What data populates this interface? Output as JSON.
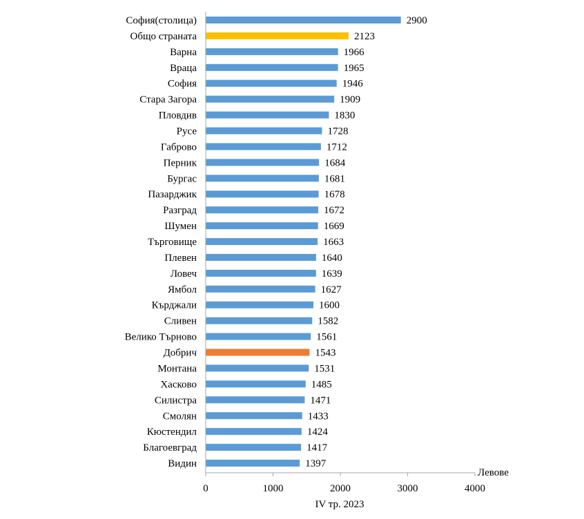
{
  "chart_data": {
    "type": "bar",
    "orientation": "horizontal",
    "categories": [
      "София(столица)",
      "Общо страната",
      "Варна",
      "Враца",
      "София",
      "Стара Загора",
      "Пловдив",
      "Русе",
      "Габрово",
      "Перник",
      "Бургас",
      "Пазарджик",
      "Разград",
      "Шумен",
      "Търговище",
      "Плевен",
      "Ловеч",
      "Ямбол",
      "Кърджали",
      "Сливен",
      "Велико Търново",
      "Добрич",
      "Монтана",
      "Хасково",
      "Силистра",
      "Смолян",
      "Кюстендил",
      "Благоевград",
      "Видин"
    ],
    "values": [
      2900,
      2123,
      1966,
      1965,
      1946,
      1909,
      1830,
      1728,
      1712,
      1684,
      1681,
      1678,
      1672,
      1669,
      1663,
      1640,
      1639,
      1627,
      1600,
      1582,
      1561,
      1543,
      1531,
      1485,
      1471,
      1433,
      1424,
      1417,
      1397
    ],
    "data_labels": [
      "2900",
      "2123",
      "1966",
      "1965",
      "1946",
      "1909",
      "1830",
      "1728",
      "1712",
      "1684",
      "1681",
      "1678",
      "1672",
      "1669",
      "1663",
      "1640",
      "1639",
      "1627",
      "1600",
      "1582",
      "1561",
      "1543",
      "1531",
      "1485",
      "1471",
      "1433",
      "1424",
      "1417",
      "1397"
    ],
    "x_ticks": [
      0,
      1000,
      2000,
      3000,
      4000
    ],
    "x_tick_labels": [
      "0",
      "1000",
      "2000",
      "3000",
      "4000"
    ],
    "xlim": [
      0,
      4000
    ],
    "unit_label": "Левове",
    "xlabel": "IV тр. 2023",
    "grid": false,
    "legend": "none",
    "colors": {
      "default": "#5B9BD5",
      "highlight_total": "#FFC000",
      "highlight_dobrich": "#ED7D31",
      "axis": "#A6A6A6"
    },
    "bar_colors": [
      "default",
      "highlight_total",
      "default",
      "default",
      "default",
      "default",
      "default",
      "default",
      "default",
      "default",
      "default",
      "default",
      "default",
      "default",
      "default",
      "default",
      "default",
      "default",
      "default",
      "default",
      "default",
      "highlight_dobrich",
      "default",
      "default",
      "default",
      "default",
      "default",
      "default",
      "default"
    ]
  }
}
